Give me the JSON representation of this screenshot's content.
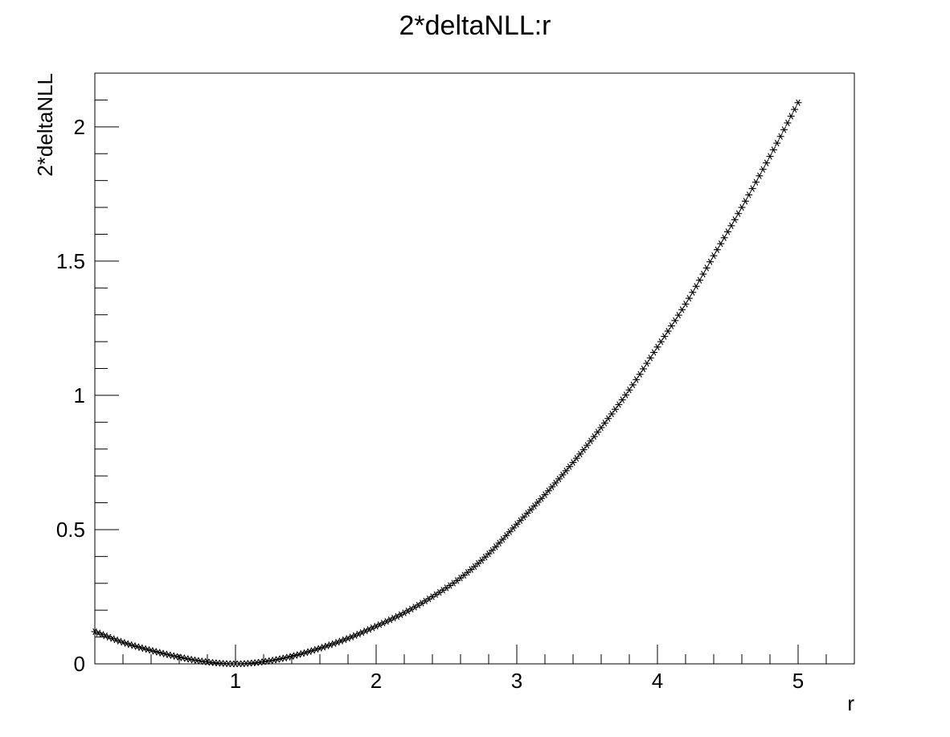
{
  "chart_data": {
    "type": "scatter",
    "title": "2*deltaNLL:r",
    "xlabel": "r",
    "ylabel": "2*deltaNLL",
    "xlim": [
      0.0,
      5.4
    ],
    "ylim": [
      0.0,
      2.2
    ],
    "x_major_ticks": [
      1,
      2,
      3,
      4,
      5
    ],
    "x_major_tick_labels": [
      "1",
      "2",
      "3",
      "4",
      "5"
    ],
    "y_major_ticks": [
      0,
      0.5,
      1,
      1.5,
      2
    ],
    "y_major_tick_labels": [
      "0",
      "0.5",
      "1",
      "1.5",
      "2"
    ],
    "x_minor_step": 0.2,
    "y_minor_step": 0.1,
    "grid": false,
    "legend": false,
    "marker": "asterisk",
    "marker_color": "#000000",
    "series": [
      {
        "x_start": 0.0,
        "x_end": 5.0,
        "x_step": 0.025,
        "curve": {
          "x": [
            0.0,
            0.2,
            0.4,
            0.6,
            0.8,
            1.0,
            1.2,
            1.4,
            1.6,
            1.8,
            2.0,
            2.2,
            2.4,
            2.6,
            2.8,
            3.0,
            3.2,
            3.4,
            3.6,
            3.8,
            4.0,
            4.2,
            4.4,
            4.6,
            4.8,
            5.0
          ],
          "y": [
            0.12,
            0.08,
            0.05,
            0.025,
            0.007,
            0.0,
            0.008,
            0.028,
            0.058,
            0.095,
            0.14,
            0.19,
            0.25,
            0.32,
            0.41,
            0.52,
            0.63,
            0.75,
            0.88,
            1.02,
            1.18,
            1.34,
            1.52,
            1.7,
            1.89,
            2.09
          ]
        }
      }
    ]
  }
}
